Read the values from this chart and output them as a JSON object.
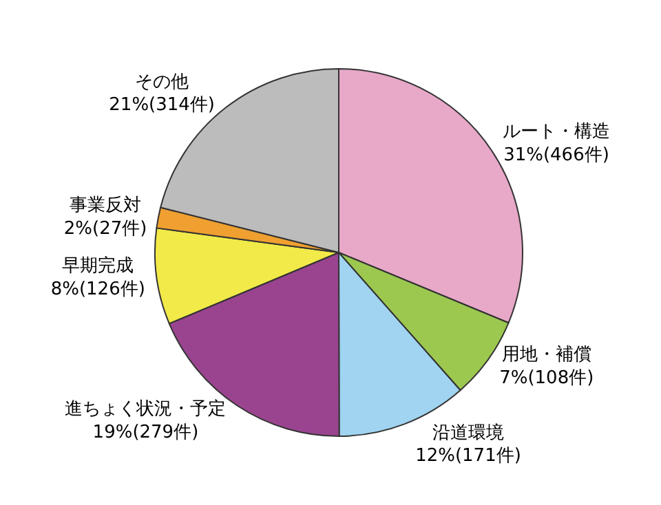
{
  "chart_data": {
    "type": "pie",
    "categories": [
      "ルート・構造",
      "用地・補償",
      "沿道環境",
      "進ちょく状況・予定",
      "早期完成",
      "事業反対",
      "その他"
    ],
    "values": [
      466,
      108,
      171,
      279,
      126,
      27,
      314
    ],
    "value_labels": [
      "31%(466件)",
      "7%(108件)",
      "12%(171件)",
      "19%(279件)",
      "8%(126件)",
      "2%(27件)",
      "21%(314件)"
    ],
    "colors": [
      "#e8a8c8",
      "#9cc850",
      "#a0d4f0",
      "#9a4490",
      "#f2ea48",
      "#f0a030",
      "#bcbcbc"
    ],
    "legend": false
  }
}
